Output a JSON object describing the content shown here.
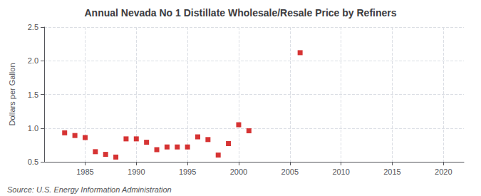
{
  "chart_data": {
    "type": "scatter",
    "title": "Annual Nevada No 1 Distillate Wholesale/Resale Price by Refiners",
    "ylabel": "Dollars per Gallon",
    "annotations": [
      "Source: U.S. Energy Information Administration"
    ],
    "x": [
      1983,
      1984,
      1985,
      1986,
      1987,
      1988,
      1989,
      1990,
      1991,
      1992,
      1993,
      1994,
      1995,
      1996,
      1997,
      1998,
      1999,
      2000,
      2001,
      2006
    ],
    "values": [
      0.93,
      0.89,
      0.86,
      0.65,
      0.61,
      0.57,
      0.84,
      0.84,
      0.79,
      0.68,
      0.72,
      0.72,
      0.72,
      0.87,
      0.83,
      0.6,
      0.77,
      1.05,
      0.96,
      2.12
    ],
    "color": "#cc0000",
    "marker": "square",
    "xlim": [
      1981,
      2022
    ],
    "xticks": [
      1985,
      1990,
      1995,
      2000,
      2005,
      2010,
      2015,
      2020
    ],
    "ylim": [
      0.5,
      2.5
    ],
    "yticks": [
      0.5,
      {
        "value": 1,
        "label": "1.0"
      },
      1.5,
      {
        "value": 2,
        "label": "2.0"
      },
      2.5
    ],
    "grid": true
  }
}
